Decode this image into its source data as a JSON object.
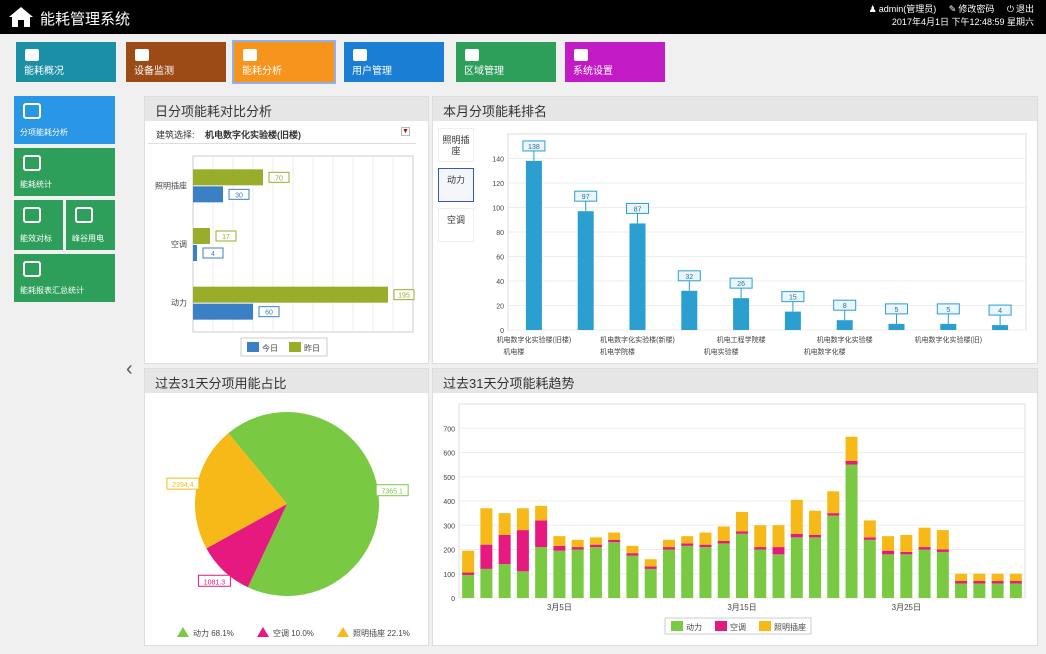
{
  "header": {
    "title": "能耗管理系统",
    "user": "admin(管理员)",
    "modify": "修改密码",
    "logout": "退出",
    "date": "2017年4月1日 下午12:48:59 星期六"
  },
  "modules": [
    {
      "label": "能耗概况",
      "color": "#1b8fa6"
    },
    {
      "label": "设备监测",
      "color": "#9c4a16"
    },
    {
      "label": "能耗分析",
      "color": "#f7941d"
    },
    {
      "label": "用户管理",
      "color": "#1a7fd4"
    },
    {
      "label": "区域管理",
      "color": "#2e9e5b"
    },
    {
      "label": "系统设置",
      "color": "#c21ac4"
    }
  ],
  "sidebar": [
    {
      "label": "分项能耗分析",
      "color": "#2a96e6"
    },
    {
      "label": "能耗统计",
      "color": "#2e9e5b"
    },
    {
      "label": "能效对标",
      "color": "#2e9e5b"
    },
    {
      "label": "峰谷用电",
      "color": "#2e9e5b"
    },
    {
      "label": "能耗报表汇总统计",
      "color": "#2e9e5b"
    }
  ],
  "panels": {
    "daily": {
      "title": "日分项能耗对比分析",
      "select_label": "建筑选择:",
      "select_value": "机电数字化实验楼(旧楼)",
      "categories": [
        "照明插座",
        "空调",
        "动力"
      ],
      "series": [
        {
          "name": "今日",
          "values": [
            30,
            4,
            60
          ],
          "color": "#3b7fc4"
        },
        {
          "name": "昨日",
          "values": [
            70,
            17,
            195
          ],
          "color": "#9aad2a"
        }
      ],
      "xmax": 220
    },
    "ranking": {
      "title": "本月分项能耗排名",
      "tabs": [
        "照明插座",
        "动力",
        "空调"
      ],
      "active_tab": 1,
      "values": [
        138,
        97,
        87,
        32,
        26,
        15,
        8,
        5,
        5,
        4
      ],
      "ymax": 160,
      "yticks": [
        "0",
        "20",
        "40",
        "60",
        "80",
        "100",
        "120",
        "140"
      ],
      "xlabels_top": [
        "机电数字化实验楼(旧楼)",
        "",
        "机电数字化实验楼(新楼)",
        "",
        "机电工程学院楼",
        "",
        "机电数字化实验楼",
        "",
        "机电数字化实验楼(旧)",
        ""
      ],
      "xlabels_bottom": [
        "机电楼",
        "",
        "机电学院楼",
        "",
        "机电实验楼",
        "",
        "机电数字化楼",
        "",
        "",
        ""
      ]
    },
    "pie": {
      "title": "过去31天分项用能占比",
      "slices": [
        {
          "name": "动力",
          "value": 68,
          "color": "#7ac943"
        },
        {
          "name": "空调",
          "value": 10,
          "color": "#e6197e"
        },
        {
          "name": "照明插座",
          "value": 22,
          "color": "#f7b918"
        }
      ],
      "labels": [
        "7365.1",
        "1081.3",
        "2394.4"
      ],
      "legend_suffix": [
        "68.1%",
        "10.0%",
        "22.1%"
      ]
    },
    "trend": {
      "title": "过去31天分项能耗趋势",
      "series": [
        {
          "name": "动力",
          "color": "#7ac943"
        },
        {
          "name": "空调",
          "color": "#e6197e"
        },
        {
          "name": "照明插座",
          "color": "#f7b918"
        }
      ],
      "ymax": 800,
      "yticks": [
        "0",
        "100",
        "200",
        "300",
        "400",
        "500",
        "600",
        "700"
      ],
      "xlabels": [
        "3月5日",
        "3月15日",
        "3月25日"
      ],
      "data": [
        [
          95,
          10,
          90
        ],
        [
          120,
          100,
          150
        ],
        [
          140,
          120,
          90
        ],
        [
          110,
          170,
          90
        ],
        [
          210,
          110,
          60
        ],
        [
          195,
          20,
          40
        ],
        [
          200,
          10,
          30
        ],
        [
          210,
          10,
          30
        ],
        [
          230,
          10,
          30
        ],
        [
          175,
          10,
          30
        ],
        [
          120,
          10,
          30
        ],
        [
          200,
          10,
          30
        ],
        [
          215,
          10,
          30
        ],
        [
          210,
          10,
          50
        ],
        [
          225,
          10,
          60
        ],
        [
          265,
          10,
          80
        ],
        [
          200,
          10,
          90
        ],
        [
          180,
          30,
          90
        ],
        [
          250,
          15,
          140
        ],
        [
          250,
          10,
          100
        ],
        [
          340,
          10,
          90
        ],
        [
          550,
          15,
          100
        ],
        [
          240,
          10,
          70
        ],
        [
          180,
          15,
          60
        ],
        [
          180,
          10,
          70
        ],
        [
          200,
          10,
          80
        ],
        [
          190,
          10,
          80
        ],
        [
          60,
          10,
          30
        ],
        [
          60,
          10,
          30
        ],
        [
          60,
          10,
          30
        ],
        [
          60,
          10,
          30
        ]
      ]
    }
  }
}
